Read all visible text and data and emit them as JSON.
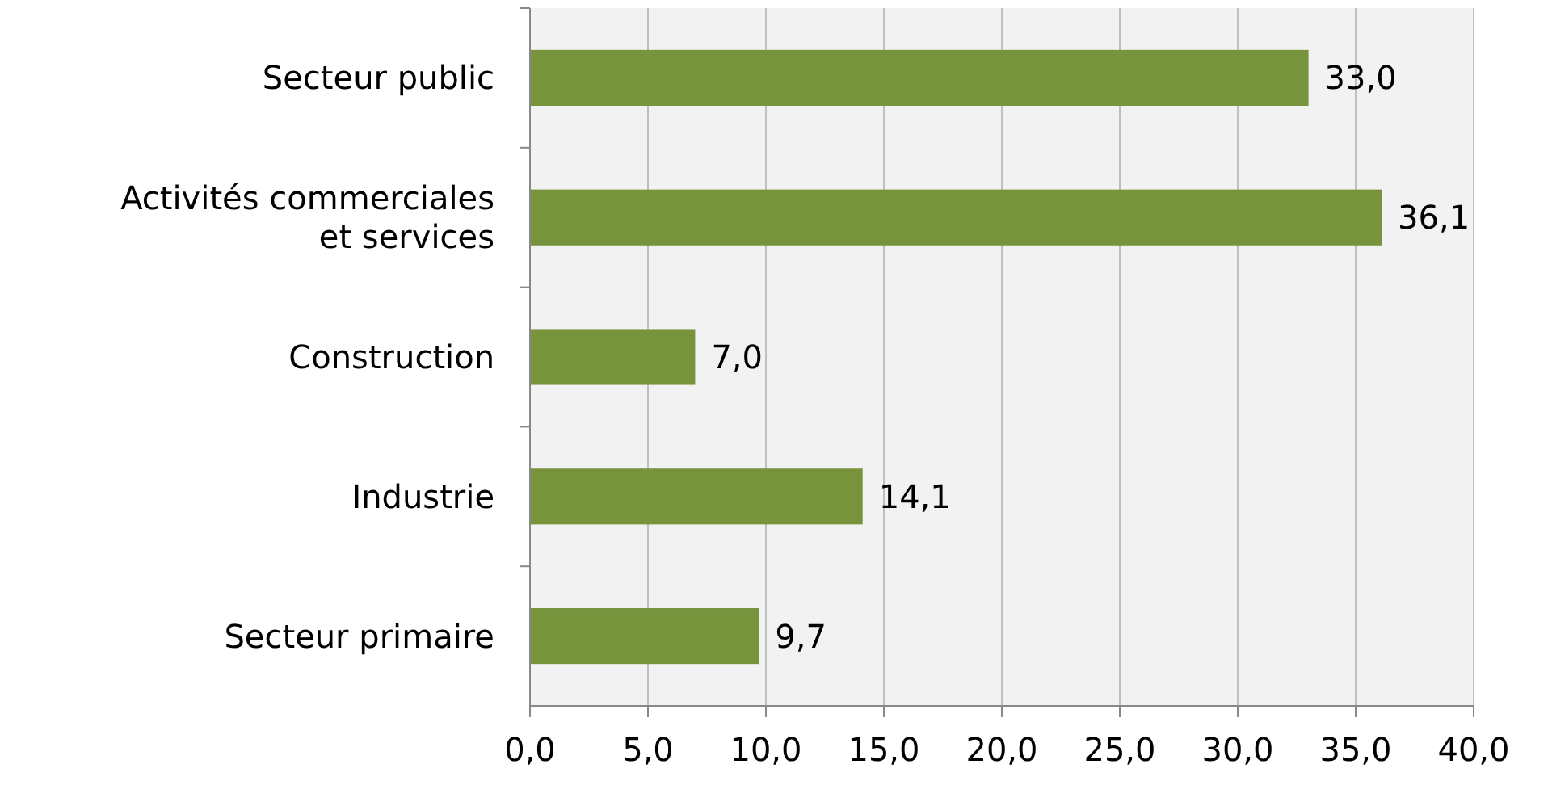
{
  "chart_data": {
    "type": "bar",
    "orientation": "horizontal",
    "categories": [
      "Secteur public",
      "Activités commerciales et services",
      "Construction",
      "Industrie",
      "Secteur primaire"
    ],
    "values": [
      33.0,
      36.1,
      7.0,
      14.1,
      9.7
    ],
    "value_labels": [
      "33,0",
      "36,1",
      "7,0",
      "14,1",
      "9,7"
    ],
    "color": "#77933c",
    "xlim": [
      0,
      40
    ],
    "xticks": [
      {
        "value": 0,
        "label": "0,0"
      },
      {
        "value": 5,
        "label": "5,0"
      },
      {
        "value": 10,
        "label": "10,0"
      },
      {
        "value": 15,
        "label": "15,0"
      },
      {
        "value": 20,
        "label": "20,0"
      },
      {
        "value": 25,
        "label": "25,0"
      },
      {
        "value": 30,
        "label": "30,0"
      },
      {
        "value": 35,
        "label": "35,0"
      },
      {
        "value": 40,
        "label": "40,0"
      }
    ],
    "grid": "x"
  }
}
